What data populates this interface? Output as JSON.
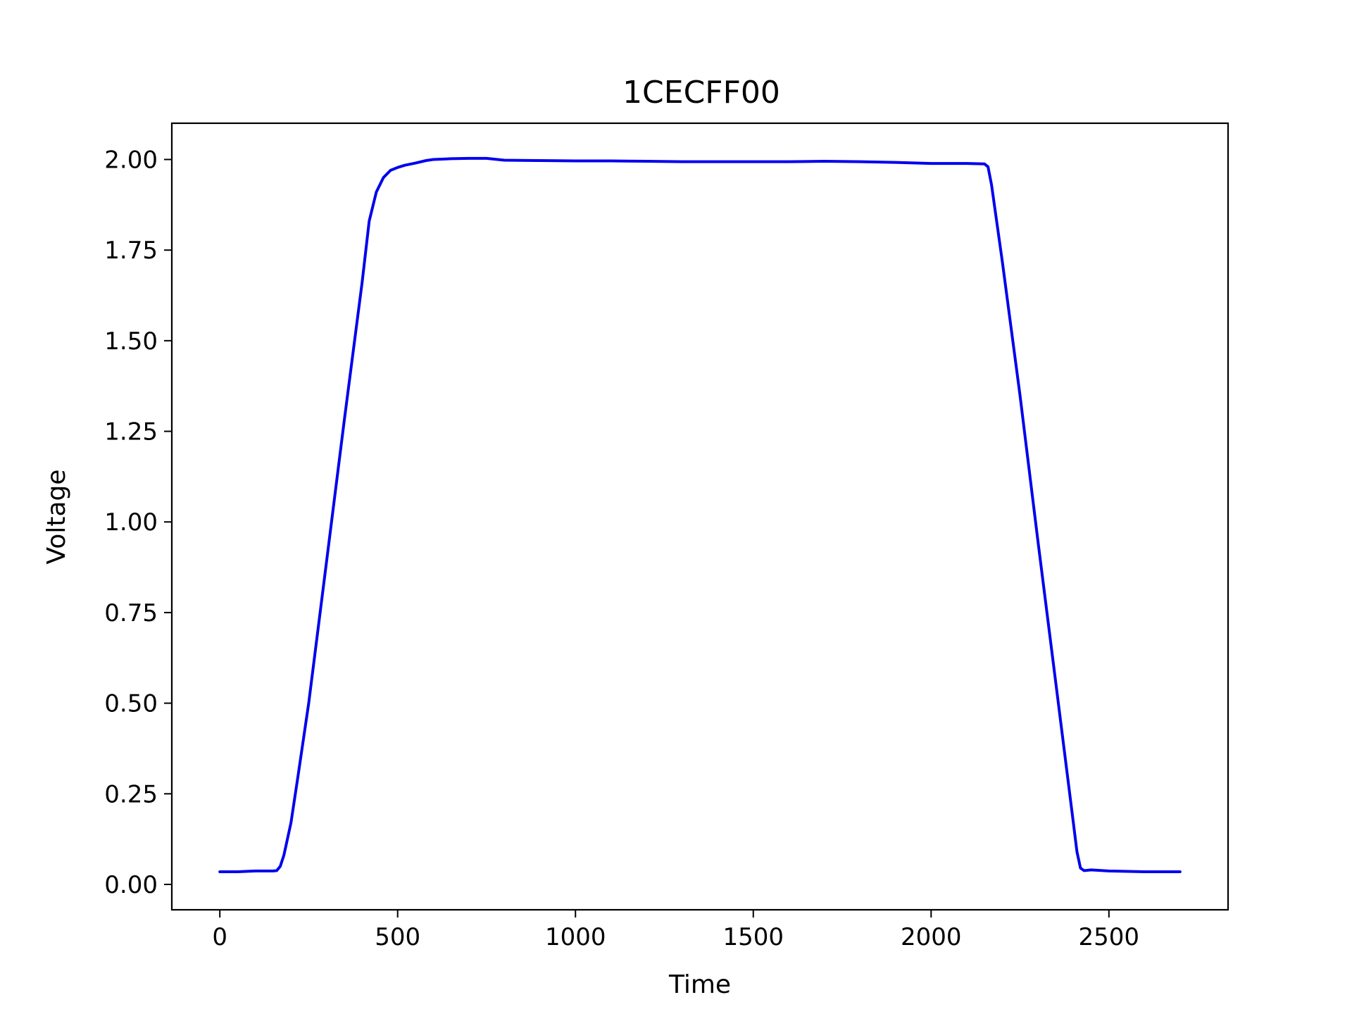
{
  "chart_data": {
    "type": "line",
    "title": "1CECFF00",
    "xlabel": "Time",
    "ylabel": "Voltage",
    "xlim": [
      -135,
      2835
    ],
    "ylim": [
      -0.07,
      2.1
    ],
    "xticks": [
      0,
      500,
      1000,
      1500,
      2000,
      2500
    ],
    "xtick_labels": [
      "0",
      "500",
      "1000",
      "1500",
      "2000",
      "2500"
    ],
    "yticks": [
      0.0,
      0.25,
      0.5,
      0.75,
      1.0,
      1.25,
      1.5,
      1.75,
      2.0
    ],
    "ytick_labels": [
      "0.00",
      "0.25",
      "0.50",
      "0.75",
      "1.00",
      "1.25",
      "1.50",
      "1.75",
      "2.00"
    ],
    "grid": false,
    "series": [
      {
        "color": "#0000ee",
        "x": [
          0,
          50,
          100,
          150,
          160,
          170,
          180,
          200,
          220,
          250,
          300,
          350,
          400,
          420,
          440,
          460,
          480,
          500,
          520,
          550,
          580,
          600,
          650,
          700,
          750,
          800,
          900,
          1000,
          1100,
          1200,
          1300,
          1400,
          1500,
          1600,
          1700,
          1800,
          1900,
          2000,
          2100,
          2150,
          2160,
          2170,
          2200,
          2250,
          2300,
          2350,
          2400,
          2410,
          2420,
          2430,
          2450,
          2500,
          2600,
          2700
        ],
        "y": [
          0.035,
          0.035,
          0.037,
          0.037,
          0.038,
          0.05,
          0.08,
          0.17,
          0.3,
          0.5,
          0.89,
          1.28,
          1.66,
          1.83,
          1.91,
          1.95,
          1.97,
          1.978,
          1.984,
          1.99,
          1.997,
          2.0,
          2.002,
          2.003,
          2.003,
          1.998,
          1.997,
          1.996,
          1.996,
          1.995,
          1.994,
          1.994,
          1.994,
          1.994,
          1.995,
          1.994,
          1.992,
          1.989,
          1.989,
          1.988,
          1.98,
          1.93,
          1.72,
          1.35,
          0.95,
          0.56,
          0.17,
          0.09,
          0.045,
          0.038,
          0.04,
          0.037,
          0.035,
          0.035
        ]
      }
    ]
  }
}
